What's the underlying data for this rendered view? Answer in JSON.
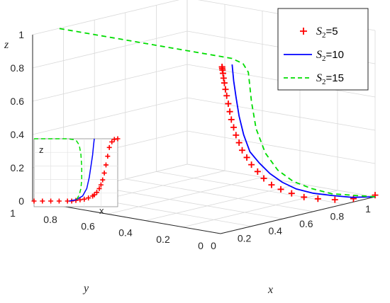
{
  "chart_data": {
    "type": "line",
    "projection": "3d",
    "axes": {
      "x": {
        "label": "x",
        "range": [
          0,
          1
        ],
        "ticks": [
          "0",
          "0.2",
          "0.4",
          "0.6",
          "0.8",
          "1"
        ]
      },
      "y": {
        "label": "y",
        "range": [
          0,
          1
        ],
        "ticks": [
          "0",
          "0.2",
          "0.4",
          "0.6",
          "0.8",
          "1"
        ]
      },
      "z": {
        "label": "z",
        "range": [
          0,
          1
        ],
        "ticks": [
          "0",
          "0.2",
          "0.4",
          "0.6",
          "0.8",
          "1"
        ]
      }
    },
    "grid": true,
    "legend": {
      "placement": "top-right",
      "entries": [
        {
          "prefix": "S",
          "sub": "2",
          "suffix": "=5",
          "color": "#ff0000",
          "style": "plus-markers"
        },
        {
          "prefix": "S",
          "sub": "2",
          "suffix": "=10",
          "color": "#0000ff",
          "style": "solid"
        },
        {
          "prefix": "S",
          "sub": "2",
          "suffix": "=15",
          "color": "#00dd00",
          "style": "dashed"
        }
      ]
    },
    "series": [
      {
        "name": "S2=5",
        "color": "#ff0000",
        "marker": "+",
        "x": [
          1,
          0.86,
          0.74,
          0.63,
          0.54,
          0.46,
          0.39,
          0.33,
          0.28,
          0.24,
          0.2,
          0.17,
          0.14,
          0.12,
          0.1,
          0.085,
          0.07,
          0.06,
          0.05,
          0.04,
          0.032,
          0.025,
          0.02,
          0.016,
          0.013,
          0.011,
          0.01,
          0.01
        ],
        "y": [
          0,
          0,
          0,
          0,
          0,
          0,
          0,
          0,
          0,
          0,
          0,
          0,
          0,
          0,
          0,
          0,
          0,
          0,
          0,
          0,
          0,
          0,
          0,
          0,
          0,
          0,
          0,
          0
        ],
        "z": [
          0.01,
          0.02,
          0.04,
          0.07,
          0.1,
          0.14,
          0.18,
          0.22,
          0.27,
          0.32,
          0.37,
          0.42,
          0.47,
          0.52,
          0.57,
          0.62,
          0.67,
          0.72,
          0.77,
          0.82,
          0.86,
          0.9,
          0.93,
          0.96,
          0.98,
          0.99,
          1,
          1
        ]
      },
      {
        "name": "S2=10",
        "color": "#0000ff",
        "x": [
          1,
          0.85,
          0.72,
          0.6,
          0.49,
          0.4,
          0.32,
          0.25,
          0.19,
          0.15,
          0.12,
          0.1,
          0.085,
          0.075
        ],
        "y": [
          0,
          0,
          0,
          0,
          0,
          0,
          0,
          0,
          0,
          0,
          0,
          0,
          0,
          0
        ],
        "z": [
          0,
          0.03,
          0.07,
          0.11,
          0.16,
          0.22,
          0.29,
          0.37,
          0.45,
          0.56,
          0.68,
          0.8,
          0.9,
          1
        ]
      },
      {
        "name": "S2=15",
        "color": "#00dd00",
        "x": [
          1,
          0.86,
          0.72,
          0.59,
          0.47,
          0.37,
          0.29,
          0.23,
          0.2,
          0.18,
          0.17,
          0.17,
          0.17,
          0.17,
          0.17,
          0.17,
          0.17
        ],
        "y": [
          0,
          0,
          0,
          0,
          0,
          0,
          0,
          0,
          0,
          0,
          0.02,
          0.08,
          0.2,
          0.4,
          0.6,
          0.8,
          1
        ],
        "z": [
          0,
          0.04,
          0.08,
          0.14,
          0.21,
          0.3,
          0.42,
          0.58,
          0.75,
          0.93,
          0.98,
          1,
          1,
          1,
          1,
          1,
          1
        ]
      }
    ],
    "inset": {
      "xlabel": "x",
      "ylabel": "z",
      "series": [
        {
          "name": "S2=5",
          "x": [
            0,
            0.1,
            0.2,
            0.3,
            0.4,
            0.45,
            0.5,
            0.55,
            0.6,
            0.65,
            0.7,
            0.72,
            0.75,
            0.78,
            0.8,
            0.82,
            0.84,
            0.86,
            0.88,
            0.9,
            0.93,
            0.96,
            1
          ],
          "z": [
            0,
            0,
            0,
            0,
            0,
            0,
            0.01,
            0.02,
            0.03,
            0.05,
            0.08,
            0.1,
            0.14,
            0.2,
            0.26,
            0.34,
            0.45,
            0.58,
            0.72,
            0.86,
            0.95,
            0.99,
            1
          ]
        },
        {
          "name": "S2=10",
          "x": [
            0.42,
            0.5,
            0.58,
            0.63,
            0.66,
            0.68,
            0.7,
            0.71,
            0.72
          ],
          "z": [
            0,
            0.02,
            0.08,
            0.2,
            0.38,
            0.56,
            0.74,
            0.88,
            1
          ]
        },
        {
          "name": "S2=15",
          "x": [
            0,
            0.2,
            0.4,
            0.5,
            0.54,
            0.56,
            0.57,
            0.57,
            0.56,
            0.54,
            0.5
          ],
          "z": [
            1,
            1,
            1,
            0.98,
            0.9,
            0.75,
            0.55,
            0.35,
            0.2,
            0.1,
            0
          ]
        }
      ]
    }
  }
}
